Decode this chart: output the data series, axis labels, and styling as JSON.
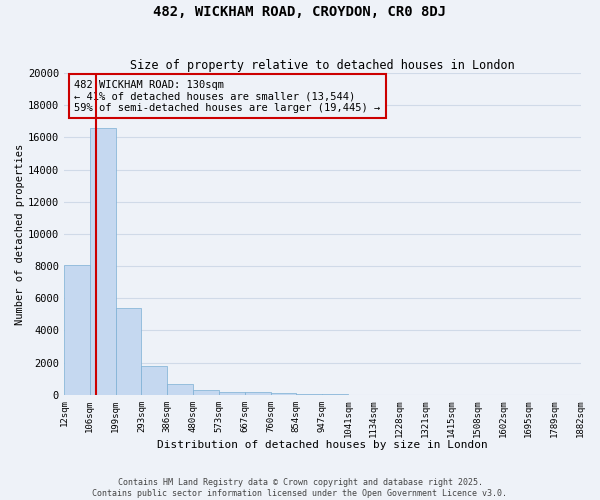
{
  "title": "482, WICKHAM ROAD, CROYDON, CR0 8DJ",
  "subtitle": "Size of property relative to detached houses in London",
  "xlabel": "Distribution of detached houses by size in London",
  "ylabel": "Number of detached properties",
  "bar_values": [
    8100,
    16600,
    5400,
    1800,
    650,
    300,
    200,
    150,
    100,
    50,
    20,
    10,
    8,
    5,
    4,
    3,
    2,
    2,
    1,
    1
  ],
  "bar_color": "#c5d8f0",
  "bar_edge_color": "#7bafd4",
  "x_labels": [
    "12sqm",
    "106sqm",
    "199sqm",
    "293sqm",
    "386sqm",
    "480sqm",
    "573sqm",
    "667sqm",
    "760sqm",
    "854sqm",
    "947sqm",
    "1041sqm",
    "1134sqm",
    "1228sqm",
    "1321sqm",
    "1415sqm",
    "1508sqm",
    "1602sqm",
    "1695sqm",
    "1789sqm",
    "1882sqm"
  ],
  "ylim": [
    0,
    20000
  ],
  "yticks": [
    0,
    2000,
    4000,
    6000,
    8000,
    10000,
    12000,
    14000,
    16000,
    18000,
    20000
  ],
  "property_line_color": "#cc0000",
  "property_bar_index": 1,
  "annotation_text": "482 WICKHAM ROAD: 130sqm\n← 41% of detached houses are smaller (13,544)\n59% of semi-detached houses are larger (19,445) →",
  "annotation_box_color": "#cc0000",
  "background_color": "#eef2f8",
  "grid_color": "#d0dae8",
  "footer_line1": "Contains HM Land Registry data © Crown copyright and database right 2025.",
  "footer_line2": "Contains public sector information licensed under the Open Government Licence v3.0."
}
